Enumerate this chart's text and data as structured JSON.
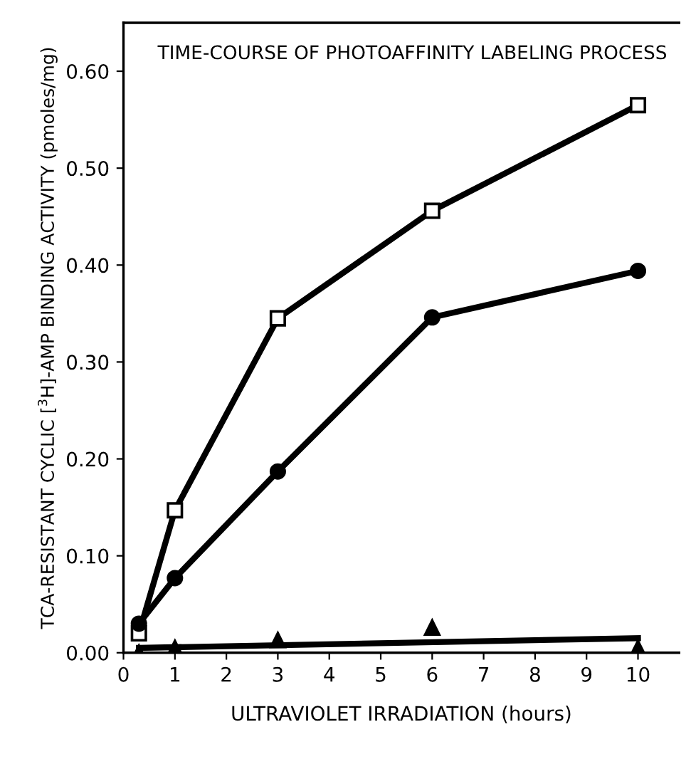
{
  "chart_data": {
    "type": "line",
    "title": "TIME-COURSE OF PHOTOAFFINITY LABELING PROCESS",
    "xlabel": "ULTRAVIOLET IRRADIATION (hours)",
    "ylabel": "TCA-RESISTANT CYCLIC [$^{3}$H]-AMP BINDING ACTIVITY (pmoles/mg)",
    "xlim": [
      0,
      10.8
    ],
    "xticks": [
      0,
      1,
      2,
      3,
      4,
      5,
      6,
      7,
      8,
      9,
      10
    ],
    "ylim": [
      0,
      0.65
    ],
    "yticks": [
      {
        "value": 0,
        "label": "0.00"
      },
      {
        "value": 0.1,
        "label": "0.10"
      },
      {
        "value": 0.2,
        "label": "0.20"
      },
      {
        "value": 0.3,
        "label": "0.30"
      },
      {
        "value": 0.4,
        "label": "0.40"
      },
      {
        "value": 0.5,
        "label": "0.50"
      },
      {
        "value": 0.6,
        "label": "0.60"
      }
    ],
    "grid": false,
    "series": [
      {
        "marker": "square",
        "color": "#000000",
        "x": [
          0.3,
          1,
          3,
          6,
          10
        ],
        "values": [
          0.02,
          0.147,
          0.345,
          0.456,
          0.565
        ]
      },
      {
        "marker": "circle",
        "color": "#000000",
        "x": [
          0.3,
          1,
          3,
          6,
          10
        ],
        "values": [
          0.03,
          0.077,
          0.187,
          0.346,
          0.394
        ]
      },
      {
        "type": "scatter",
        "marker": "triangle",
        "color": "#000000",
        "x": [
          0.3,
          1,
          3,
          6,
          10
        ],
        "values": [
          0.0,
          0.005,
          0.013,
          0.026,
          0.005
        ]
      },
      {
        "marker": "none",
        "color": "#000000",
        "x": [
          0.3,
          10
        ],
        "values": [
          0.005,
          0.015
        ]
      }
    ]
  }
}
